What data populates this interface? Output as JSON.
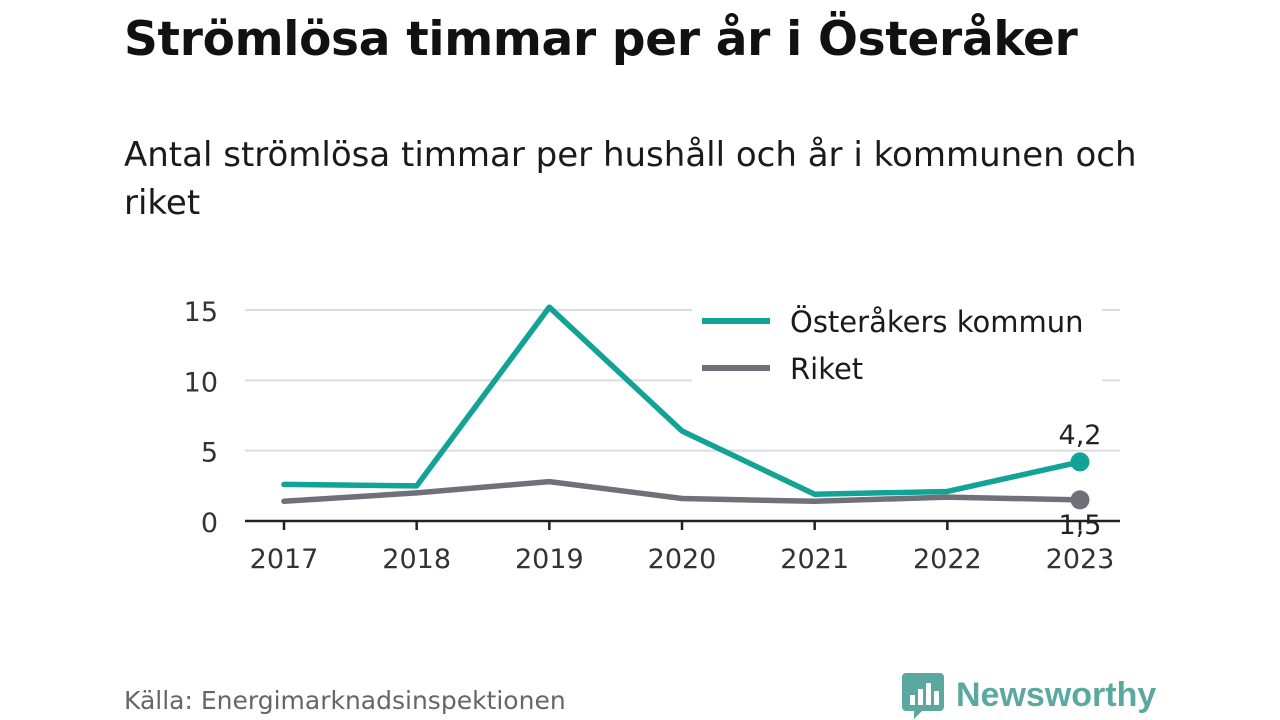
{
  "title": "Strömlösa timmar per år i Österåker",
  "subtitle": "Antal strömlösa timmar per hushåll och år i kommunen och riket",
  "source": "Källa: Energimarknadsinspektionen",
  "brand": {
    "name": "Newsworthy",
    "icon": "newsworthy-logo-icon",
    "color": "#5aa8a0"
  },
  "chart_data": {
    "type": "line",
    "x": [
      "2017",
      "2018",
      "2019",
      "2020",
      "2021",
      "2022",
      "2023"
    ],
    "series": [
      {
        "name": "Österåkers kommun",
        "color": "#12a396",
        "values": [
          2.6,
          2.5,
          15.2,
          6.4,
          1.9,
          2.1,
          4.2
        ],
        "end_label": "4,2"
      },
      {
        "name": "Riket",
        "color": "#717078",
        "values": [
          1.4,
          2.0,
          2.8,
          1.6,
          1.4,
          1.7,
          1.5
        ],
        "end_label": "1,5"
      }
    ],
    "ylim": [
      0,
      15
    ],
    "yticks": [
      "0",
      "5",
      "10",
      "15"
    ],
    "grid": true,
    "legend": "top-right",
    "xlabel": "",
    "ylabel": ""
  }
}
